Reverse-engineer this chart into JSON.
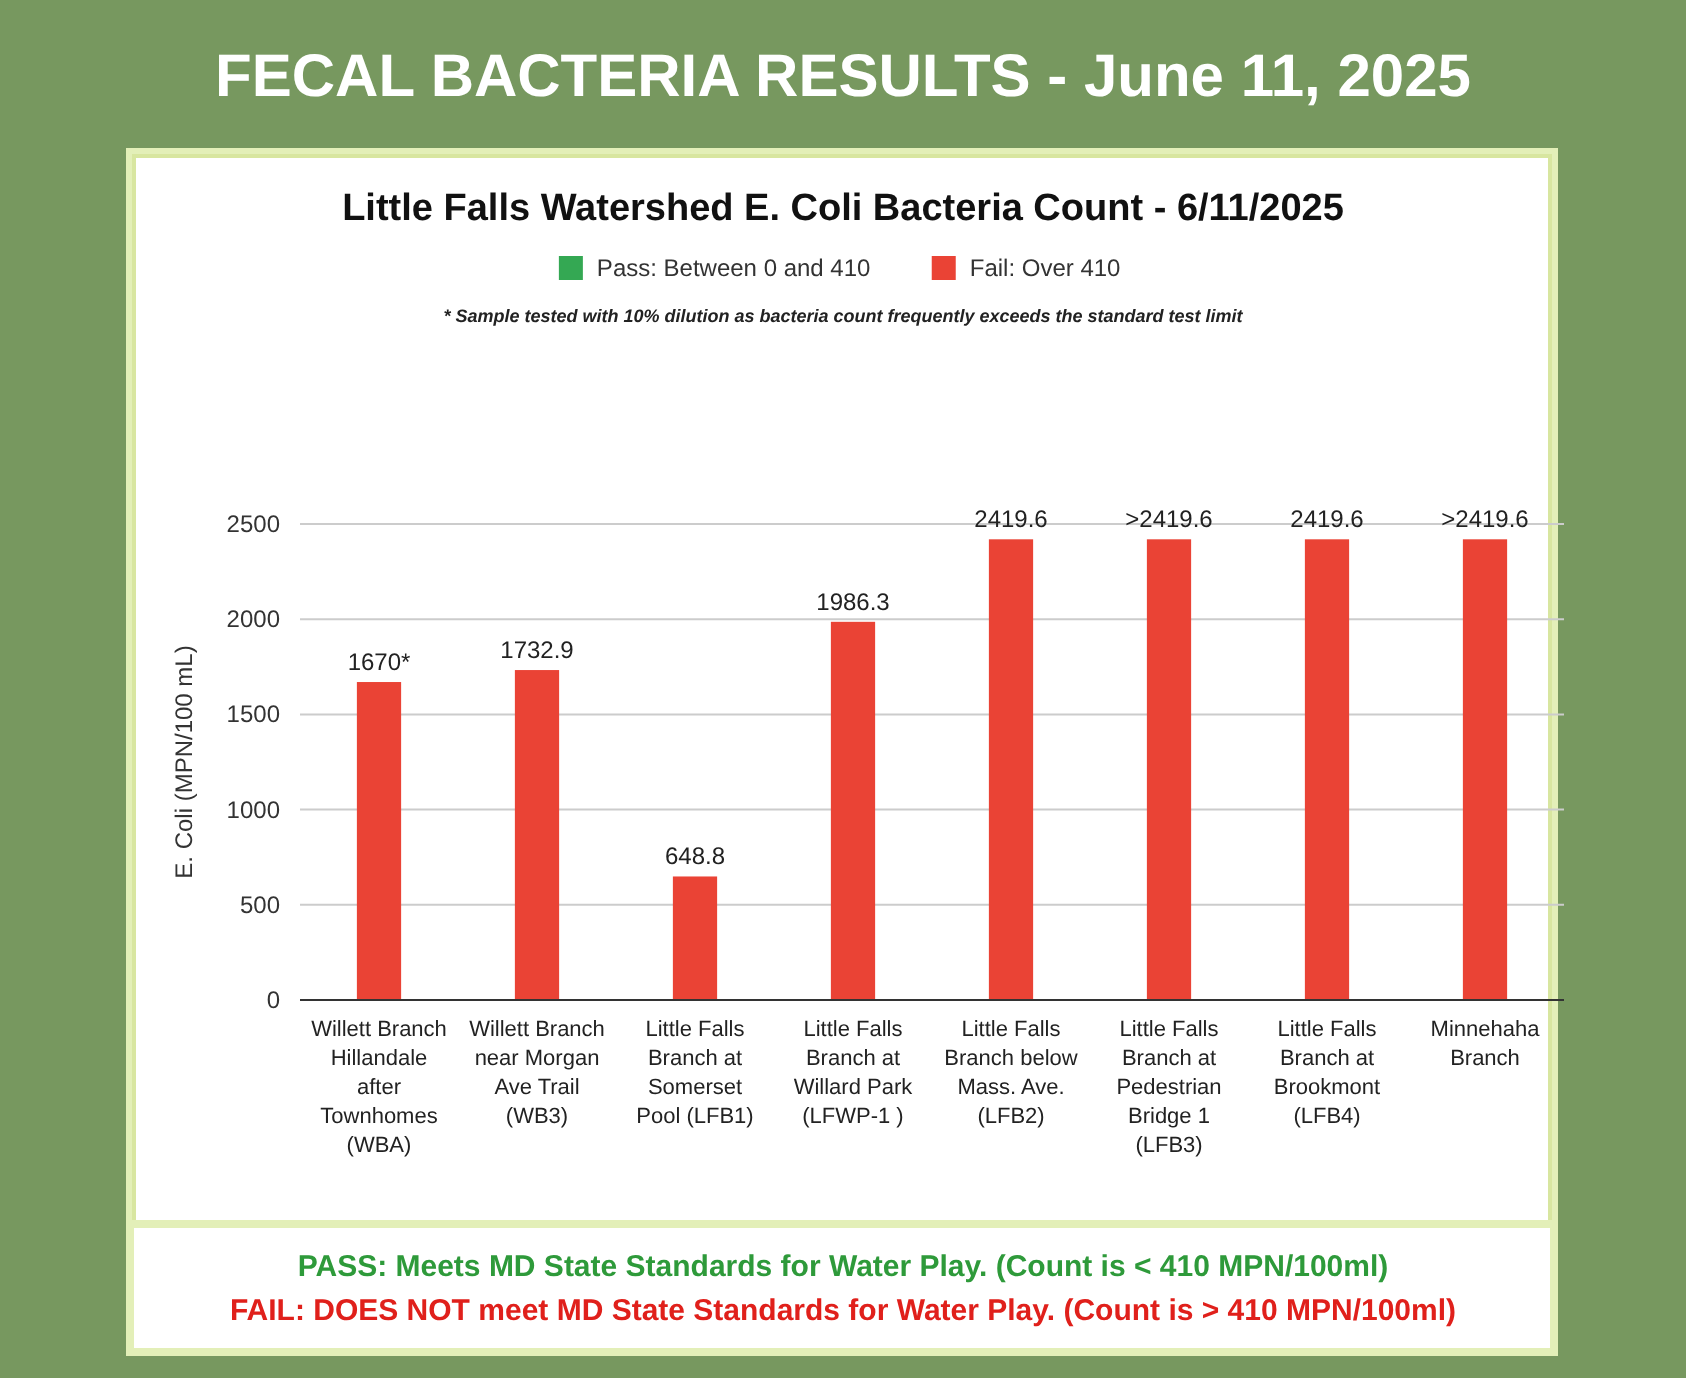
{
  "chart_data": {
    "type": "bar",
    "title": "FECAL BACTERIA RESULTS - June 11, 2025",
    "subtitle": "Little Falls Watershed E. Coli Bacteria Count - 6/11/2025",
    "ylabel": "E. Coli (MPN/100 mL)",
    "categories": [
      "Willett Branch Hillandale after Townhomes (WBA)",
      "Willett Branch near Morgan Ave Trail (WB3)",
      "Little Falls Branch at Somerset Pool (LFB1)",
      "Little Falls Branch at Willard Park (LFWP-1 )",
      "Little Falls Branch below Mass. Ave. (LFB2)",
      "Little Falls Branch at Pedestrian Bridge 1 (LFB3)",
      "Little Falls Branch at Brookmont (LFB4)",
      "Minnehaha Branch"
    ],
    "stacked": true,
    "series": [
      {
        "name": "Pass:  Between 0  and 410",
        "color": "#34a853",
        "values": [
          null,
          null,
          null,
          null,
          null,
          null,
          null,
          null
        ]
      },
      {
        "name": "Fail:  Over 410",
        "color": "#ea4335",
        "values": [
          1670,
          1732.9,
          648.8,
          1986.3,
          2419.6,
          2419.6,
          2419.6,
          2419.6
        ],
        "value_labels": [
          "1670*",
          "1732.9",
          "648.8",
          "1986.3",
          "2419.6",
          ">2419.6",
          "2419.6",
          ">2419.6"
        ]
      }
    ],
    "ylim": [
      0,
      2500
    ],
    "yticks": [
      0,
      500,
      1000,
      1500,
      2000,
      2500
    ],
    "grid": "y",
    "legend": "top",
    "annotations": [
      "* Sample tested with 10% dilution as bacteria count frequently exceeds the standard test limit",
      "PASS: Meets MD State Standards for Water Play. (Count is < 410 MPN/100ml)",
      "FAIL: DOES NOT meet MD State Standards for Water Play. (Count is > 410 MPN/100ml)"
    ]
  }
}
